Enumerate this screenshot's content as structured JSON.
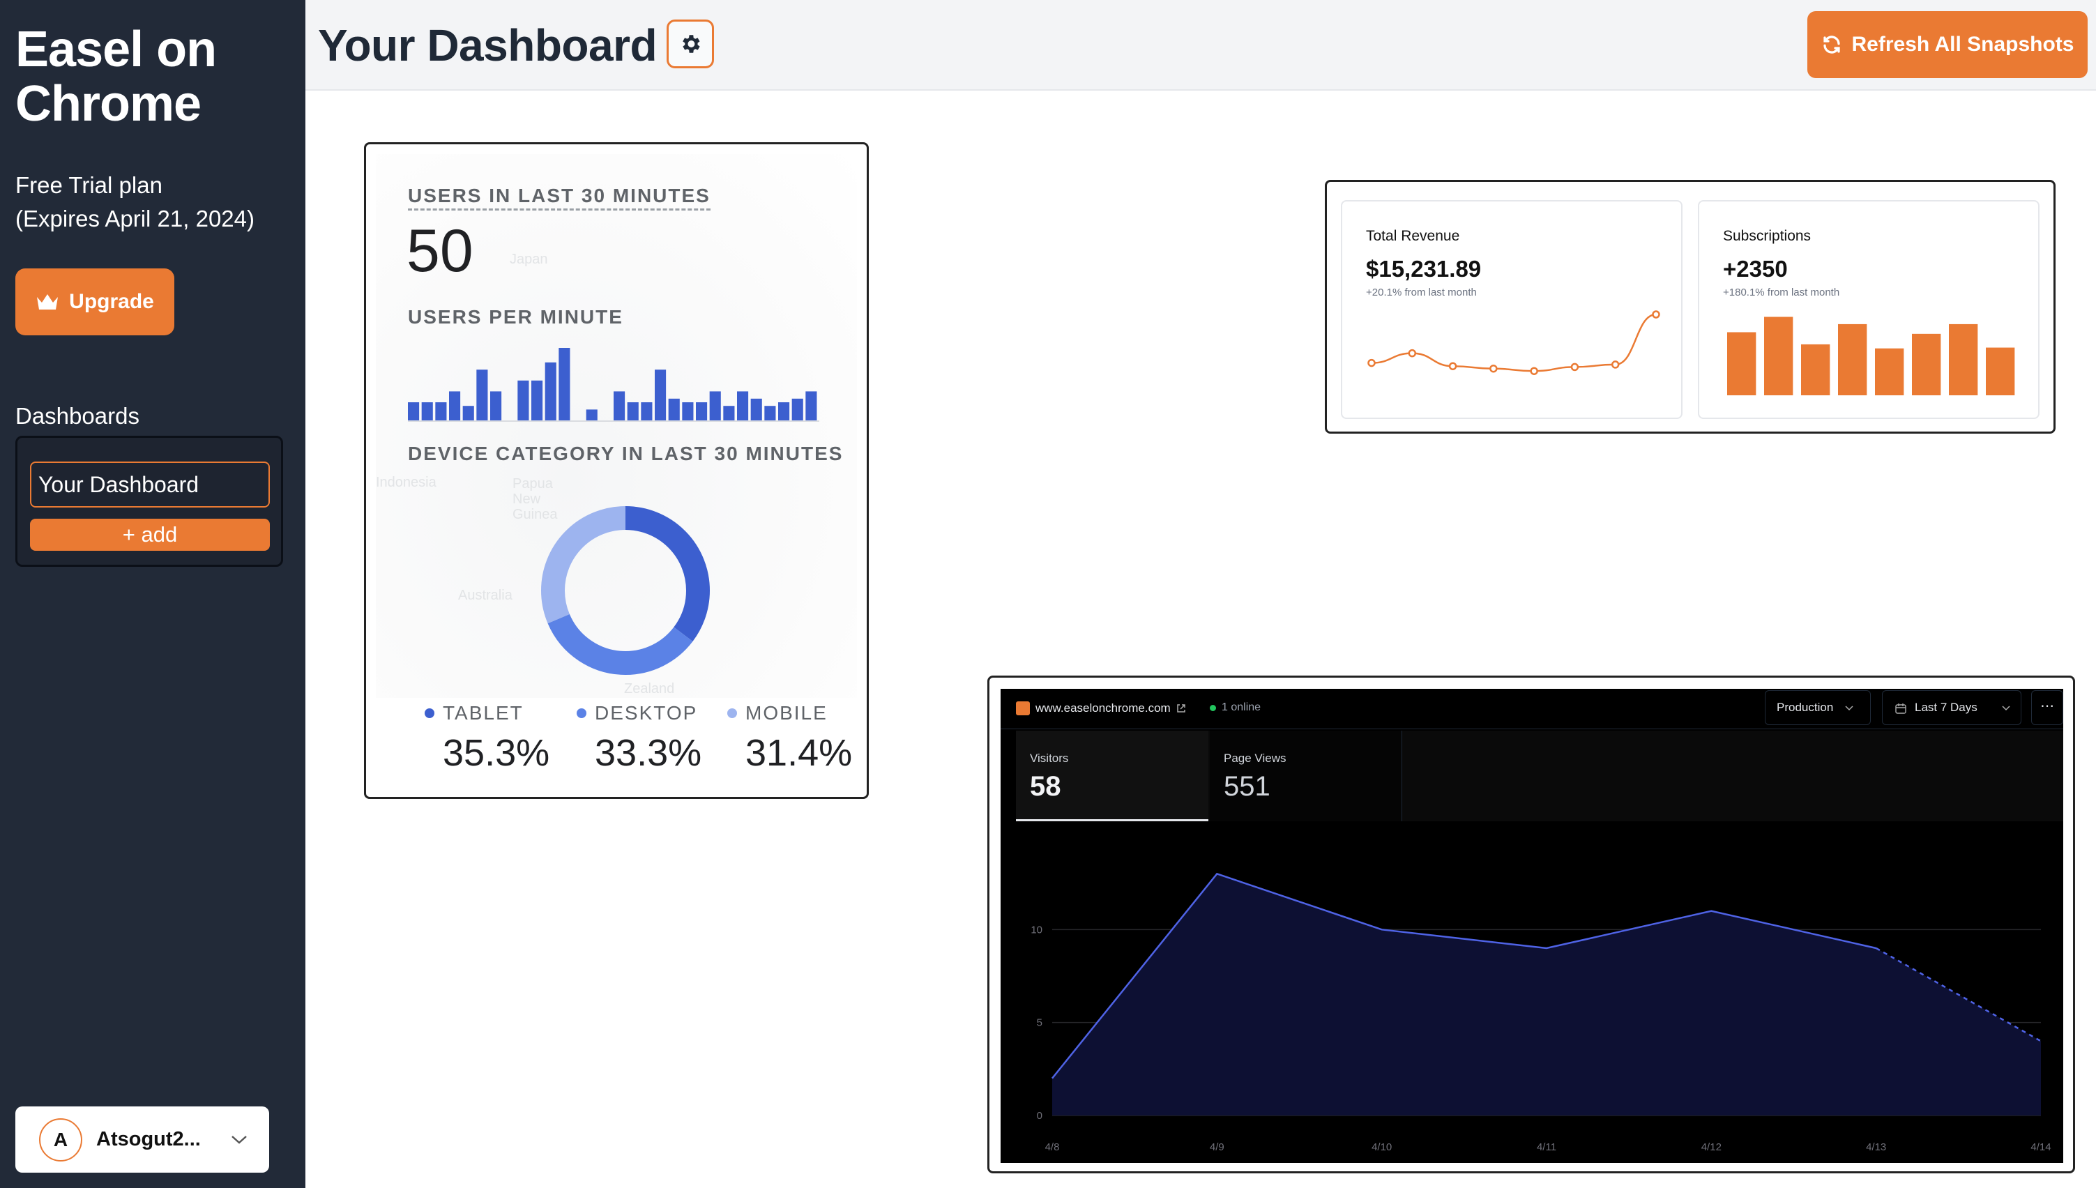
{
  "sidebar": {
    "brand_line1": "Easel on",
    "brand_line2": "Chrome",
    "plan_line1": "Free Trial plan",
    "plan_line2": "(Expires April 21, 2024)",
    "upgrade_label": "Upgrade",
    "dashboards_heading": "Dashboards",
    "dashboard_items": [
      "Your Dashboard"
    ],
    "add_label": "+ add",
    "user_initial": "A",
    "user_name": "Atsogut2..."
  },
  "header": {
    "title": "Your Dashboard",
    "refresh_label": "Refresh All Snapshots"
  },
  "realtime_card": {
    "users_label": "USERS IN LAST 30 MINUTES",
    "users_value": "50",
    "per_minute_label": "USERS PER MINUTE",
    "device_label": "DEVICE CATEGORY IN LAST 30 MINUTES",
    "map_labels": [
      "Japan",
      "Indonesia",
      "Papua New Guinea",
      "Australia",
      "Zealand"
    ],
    "legend": [
      {
        "name": "TABLET",
        "value": "35.3%",
        "color": "#3c5fcf"
      },
      {
        "name": "DESKTOP",
        "value": "33.3%",
        "color": "#5b82e6"
      },
      {
        "name": "MOBILE",
        "value": "31.4%",
        "color": "#9db4ef"
      }
    ]
  },
  "kpi_card": {
    "revenue": {
      "title": "Total Revenue",
      "value": "$15,231.89",
      "sub": "+20.1% from last month"
    },
    "subscriptions": {
      "title": "Subscriptions",
      "value": "+2350",
      "sub": "+180.1% from last month"
    }
  },
  "analytics_card": {
    "site": "www.easelonchrome.com",
    "online": "1 online",
    "environment": "Production",
    "date_range": "Last 7 Days",
    "more": "⋯",
    "tabs": [
      {
        "label": "Visitors",
        "value": "58"
      },
      {
        "label": "Page Views",
        "value": "551"
      }
    ]
  },
  "colors": {
    "accent": "#ea7a33",
    "sidebar_bg": "#222a38",
    "chart_blue": "#3c5fcf",
    "analytics_line": "#4f63e6"
  },
  "chart_data": [
    {
      "type": "bar",
      "title": "USERS PER MINUTE",
      "categories": [
        "1",
        "2",
        "3",
        "4",
        "5",
        "6",
        "7",
        "8",
        "9",
        "10",
        "11",
        "12",
        "13",
        "14",
        "15",
        "16",
        "17",
        "18",
        "19",
        "20",
        "21",
        "22",
        "23",
        "24",
        "25",
        "26",
        "27",
        "28",
        "29",
        "30"
      ],
      "values": [
        2.5,
        2.5,
        2.5,
        4,
        2,
        7,
        4,
        0,
        5.5,
        5.5,
        8,
        10,
        0,
        1.5,
        0,
        4,
        2.5,
        2.5,
        7,
        3,
        2.5,
        2.5,
        4,
        2,
        4,
        3,
        2,
        2.5,
        3,
        4
      ],
      "ylim": [
        0,
        10
      ]
    },
    {
      "type": "pie",
      "title": "DEVICE CATEGORY IN LAST 30 MINUTES",
      "labels": [
        "TABLET",
        "DESKTOP",
        "MOBILE"
      ],
      "values": [
        35.3,
        33.3,
        31.4
      ]
    },
    {
      "type": "line",
      "title": "Total Revenue",
      "values": [
        40,
        52,
        36,
        33,
        30,
        35,
        38,
        100
      ]
    },
    {
      "type": "bar",
      "title": "Subscriptions",
      "values": [
        78,
        97,
        63,
        88,
        58,
        76,
        88,
        59
      ]
    },
    {
      "type": "area",
      "categories": [
        "4/8",
        "4/9",
        "4/10",
        "4/11",
        "4/12",
        "4/13",
        "4/14"
      ],
      "series": [
        {
          "name": "Visitors",
          "values": [
            2,
            13,
            10,
            9,
            11,
            9,
            4
          ]
        }
      ],
      "yticks": [
        "0",
        "5",
        "10"
      ],
      "ylim": [
        0,
        15
      ],
      "grid": true
    }
  ]
}
